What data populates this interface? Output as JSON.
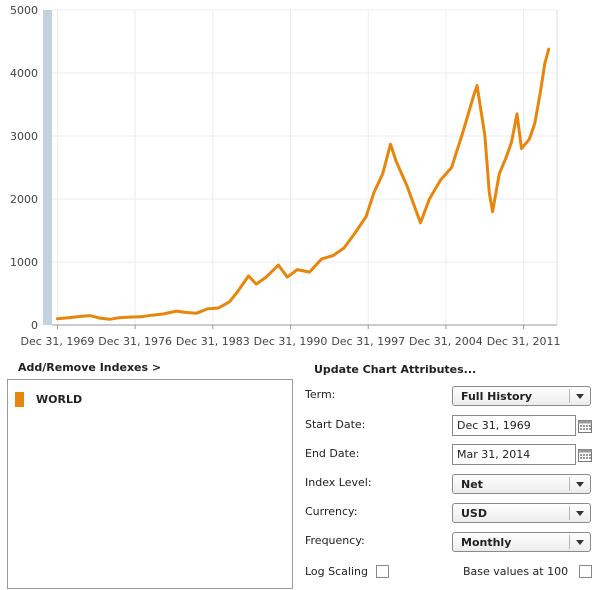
{
  "chart_data": {
    "type": "line",
    "series": [
      {
        "name": "WORLD",
        "color": "#e8860c",
        "points": [
          [
            1969.99,
            100
          ],
          [
            1971.0,
            115
          ],
          [
            1972.0,
            135
          ],
          [
            1972.9,
            150
          ],
          [
            1973.8,
            110
          ],
          [
            1974.7,
            90
          ],
          [
            1975.5,
            115
          ],
          [
            1976.5,
            125
          ],
          [
            1977.5,
            130
          ],
          [
            1978.5,
            155
          ],
          [
            1979.5,
            175
          ],
          [
            1980.7,
            220
          ],
          [
            1981.5,
            200
          ],
          [
            1982.5,
            185
          ],
          [
            1983.5,
            255
          ],
          [
            1984.5,
            270
          ],
          [
            1985.5,
            370
          ],
          [
            1986.3,
            550
          ],
          [
            1987.2,
            780
          ],
          [
            1987.9,
            650
          ],
          [
            1988.8,
            760
          ],
          [
            1989.9,
            950
          ],
          [
            1990.7,
            760
          ],
          [
            1991.6,
            880
          ],
          [
            1992.7,
            840
          ],
          [
            1993.8,
            1050
          ],
          [
            1994.8,
            1100
          ],
          [
            1995.8,
            1220
          ],
          [
            1996.8,
            1460
          ],
          [
            1997.8,
            1720
          ],
          [
            1998.5,
            2100
          ],
          [
            1999.3,
            2400
          ],
          [
            2000.0,
            2870
          ],
          [
            2000.5,
            2600
          ],
          [
            2001.5,
            2200
          ],
          [
            2002.7,
            1620
          ],
          [
            2003.5,
            2000
          ],
          [
            2004.5,
            2300
          ],
          [
            2005.5,
            2500
          ],
          [
            2006.5,
            3050
          ],
          [
            2007.5,
            3650
          ],
          [
            2007.8,
            3800
          ],
          [
            2008.5,
            3000
          ],
          [
            2008.9,
            2100
          ],
          [
            2009.2,
            1800
          ],
          [
            2009.8,
            2400
          ],
          [
            2010.4,
            2650
          ],
          [
            2010.9,
            2900
          ],
          [
            2011.4,
            3350
          ],
          [
            2011.8,
            2800
          ],
          [
            2012.5,
            2950
          ],
          [
            2013.0,
            3200
          ],
          [
            2013.5,
            3700
          ],
          [
            2013.9,
            4150
          ],
          [
            2014.25,
            4380
          ]
        ]
      }
    ],
    "xlim": [
      1969.5,
      2015
    ],
    "ylim": [
      0,
      5000
    ],
    "yticks": [
      0,
      1000,
      2000,
      3000,
      4000,
      5000
    ],
    "xticks": [
      {
        "value": 1969.99,
        "label": "Dec 31, 1969"
      },
      {
        "value": 1976.99,
        "label": "Dec 31, 1976"
      },
      {
        "value": 1983.99,
        "label": "Dec 31, 1983"
      },
      {
        "value": 1990.99,
        "label": "Dec 31, 1990"
      },
      {
        "value": 1997.99,
        "label": "Dec 31, 1997"
      },
      {
        "value": 2004.99,
        "label": "Dec 31, 2004"
      },
      {
        "value": 2011.99,
        "label": "Dec 31, 2011"
      }
    ],
    "grid": true,
    "title": "",
    "xlabel": "",
    "ylabel": ""
  },
  "links": {
    "add_remove": "Add/Remove Indexes >",
    "update_attrs": "Update Chart Attributes..."
  },
  "indexes": [
    {
      "label": "WORLD",
      "color": "#e8860c"
    }
  ],
  "attributes": {
    "term_label": "Term:",
    "term_value": "Full History",
    "start_label": "Start Date:",
    "start_value": "Dec 31, 1969",
    "end_label": "End Date:",
    "end_value": "Mar 31, 2014",
    "index_level_label": "Index Level:",
    "index_level_value": "Net",
    "currency_label": "Currency:",
    "currency_value": "USD",
    "frequency_label": "Frequency:",
    "frequency_value": "Monthly",
    "log_label": "Log Scaling",
    "log_checked": false,
    "base_label": "Base values at 100",
    "base_checked": false
  },
  "icons": {
    "calendar": "calendar-icon",
    "dropdown": "chevron-down-icon"
  }
}
